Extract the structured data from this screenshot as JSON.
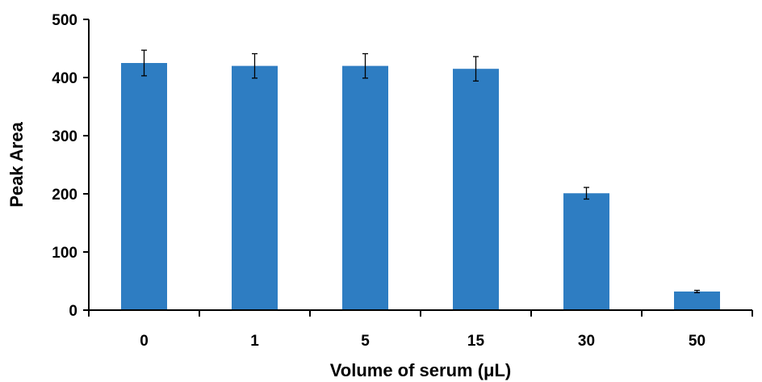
{
  "chart_data": {
    "type": "bar",
    "xlabel": "Volume of serum (μL)",
    "ylabel": "Peak Area",
    "categories": [
      "0",
      "1",
      "5",
      "15",
      "30",
      "50"
    ],
    "values": [
      425,
      420,
      420,
      415,
      201,
      32
    ],
    "errors": [
      22,
      21,
      21,
      21,
      10,
      2
    ],
    "ylim": [
      0,
      500
    ],
    "yticks": [
      "0",
      "100",
      "200",
      "300",
      "400",
      "500"
    ],
    "grid": false,
    "legend": "none",
    "bar_color": "#2E7DC2"
  }
}
